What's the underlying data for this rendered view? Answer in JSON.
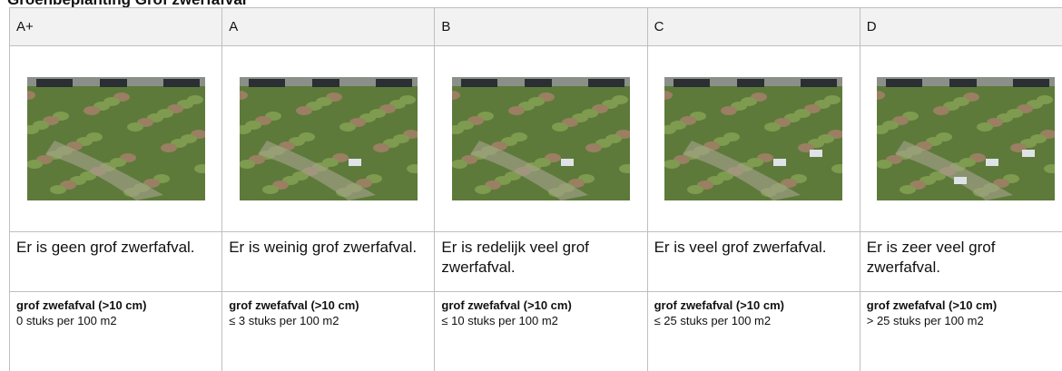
{
  "header": {
    "title": "Groenbeplanting Grof zwerfafval"
  },
  "table": {
    "columns": [
      {
        "grade": "A+",
        "description": "Er is geen grof zwerfafval.",
        "criteria_title": "grof zwefafval (>10 cm)",
        "criteria_value": "0 stuks per 100 m2"
      },
      {
        "grade": "A",
        "description": "Er is weinig grof zwerfafval.",
        "criteria_title": "grof zwefafval (>10 cm)",
        "criteria_value": "≤ 3 stuks per 100 m2"
      },
      {
        "grade": "B",
        "description": "Er is redelijk veel grof zwerfafval.",
        "criteria_title": "grof zwefafval (>10 cm)",
        "criteria_value": "≤ 10 stuks per 100 m2"
      },
      {
        "grade": "C",
        "description": "Er is veel grof zwerfafval.",
        "criteria_title": "grof zwefafval (>10 cm)",
        "criteria_value": "≤ 25 stuks per 100 m2"
      },
      {
        "grade": "D",
        "description": "Er is zeer veel grof zwerfafval.",
        "criteria_title": "grof zwefafval (>10 cm)",
        "criteria_value": "> 25 stuks per 100 m2"
      }
    ]
  }
}
